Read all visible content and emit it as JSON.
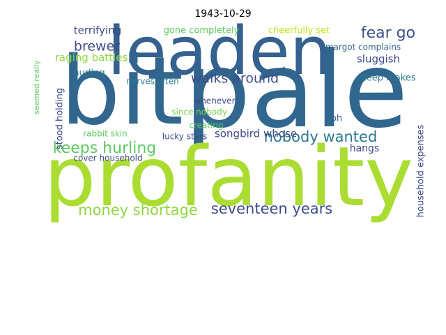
{
  "chart_data": {
    "type": "wordcloud",
    "title": "1943-10-29",
    "words": [
      "pale",
      "bit",
      "leaden",
      "profanity",
      "keeps hurling",
      "nobody wanted",
      "seventeen years",
      "money shortage",
      "walks around",
      "fear go",
      "brewer",
      "terrifying",
      "gone completely",
      "cheerfully set",
      "margot complains",
      "raging battles",
      "sluggish",
      "sleep makes",
      "hurling",
      "nerves often",
      "whenever",
      "since nobody",
      "creating",
      "songbird whose",
      "oh",
      "rabbit skin",
      "lucky stars",
      "hangs",
      "cover household",
      "stood holding",
      "seemed really",
      "household expenses"
    ],
    "colors": [
      "#31678e",
      "#31678e",
      "#34618d",
      "#aadc32",
      "#5ec962",
      "#2a788e",
      "#3e4a89",
      "#8fd744",
      "#3e4a89",
      "#3b528b",
      "#3e4a89",
      "#3e4a89",
      "#5ec962",
      "#c8e020",
      "#35608d",
      "#8fd744",
      "#3e4a89",
      "#2a788e",
      "#2a788e",
      "#2a788e",
      "#3e4a89",
      "#7ad151",
      "#5ec962",
      "#3e4a89",
      "#35608d",
      "#5ec962",
      "#3e4a89",
      "#3e4a89",
      "#3e4a89",
      "#3e4a89",
      "#5ec962",
      "#3e4a89"
    ]
  }
}
